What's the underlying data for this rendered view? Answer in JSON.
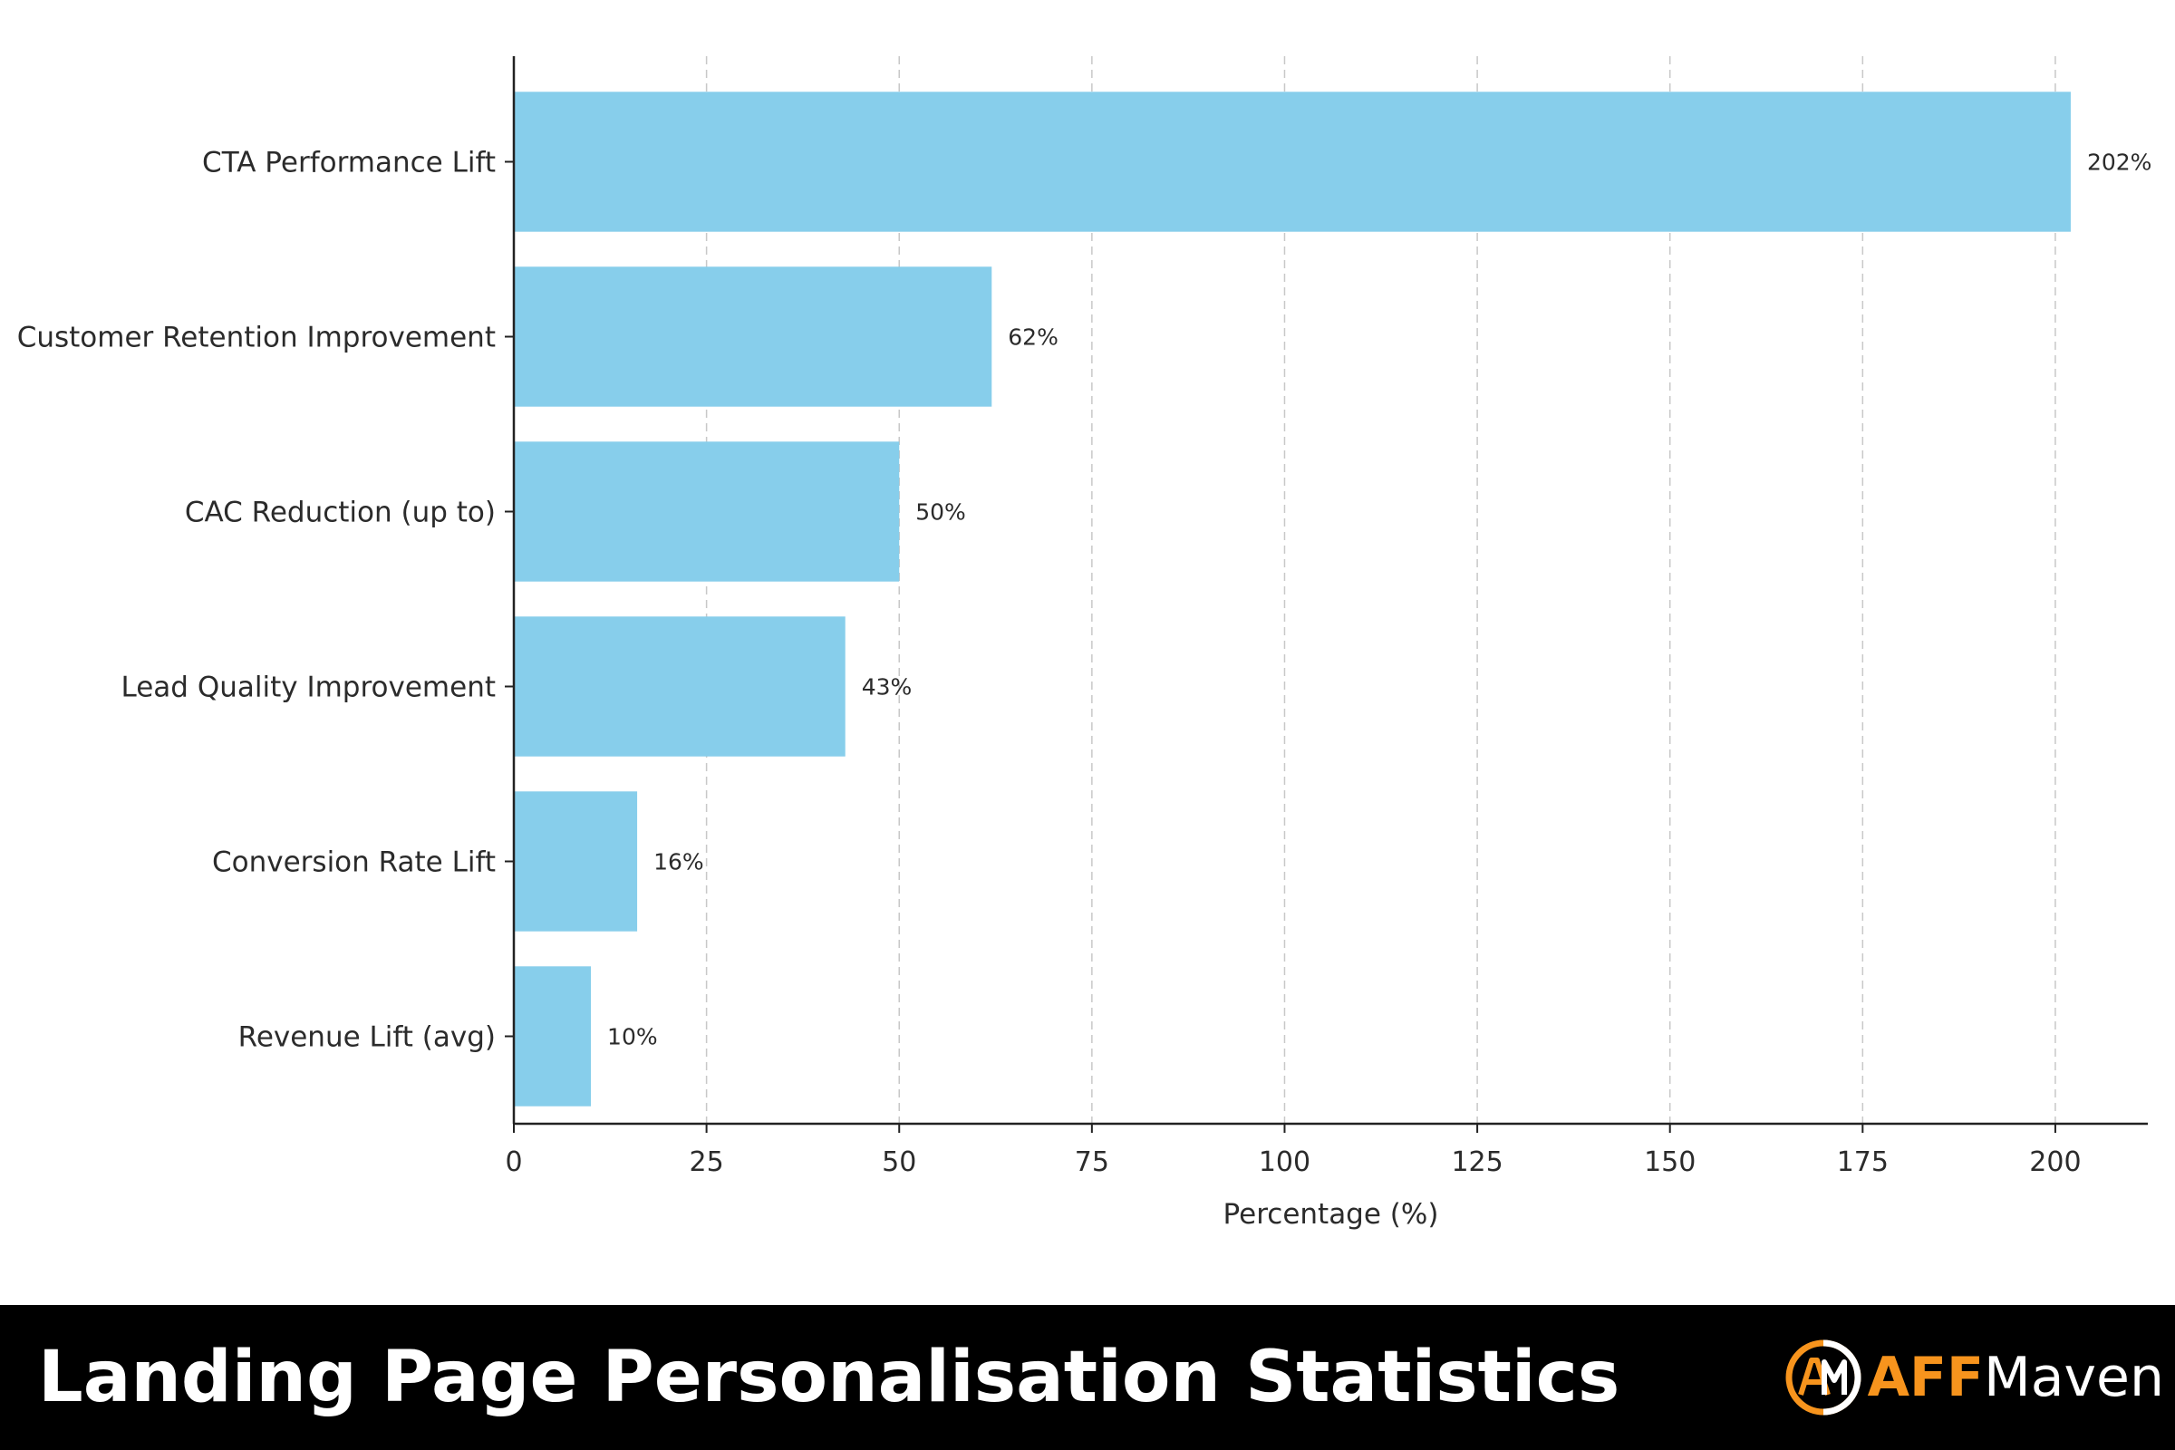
{
  "chart_data": {
    "type": "bar",
    "orientation": "horizontal",
    "categories": [
      "CTA Performance Lift",
      "Customer Retention Improvement",
      "CAC Reduction (up to)",
      "Lead Quality Improvement",
      "Conversion Rate Lift",
      "Revenue Lift (avg)"
    ],
    "values": [
      202,
      62,
      50,
      43,
      16,
      10
    ],
    "value_labels": [
      "202%",
      "62%",
      "50%",
      "43%",
      "16%",
      "10%"
    ],
    "title": "",
    "xlabel": "Percentage (%)",
    "ylabel": "",
    "xlim": [
      0,
      212
    ],
    "xticks": [
      0,
      25,
      50,
      75,
      100,
      125,
      150,
      175,
      200
    ],
    "grid": "vertical dashed",
    "bar_color": "#87ceeb"
  },
  "footer": {
    "title": "Landing Page Personalisation Statistics",
    "background": "#000000"
  },
  "brand": {
    "name_part1": "AFF",
    "name_part2": "Maven",
    "logo_text": "AM",
    "accent_color": "#f7941d"
  }
}
